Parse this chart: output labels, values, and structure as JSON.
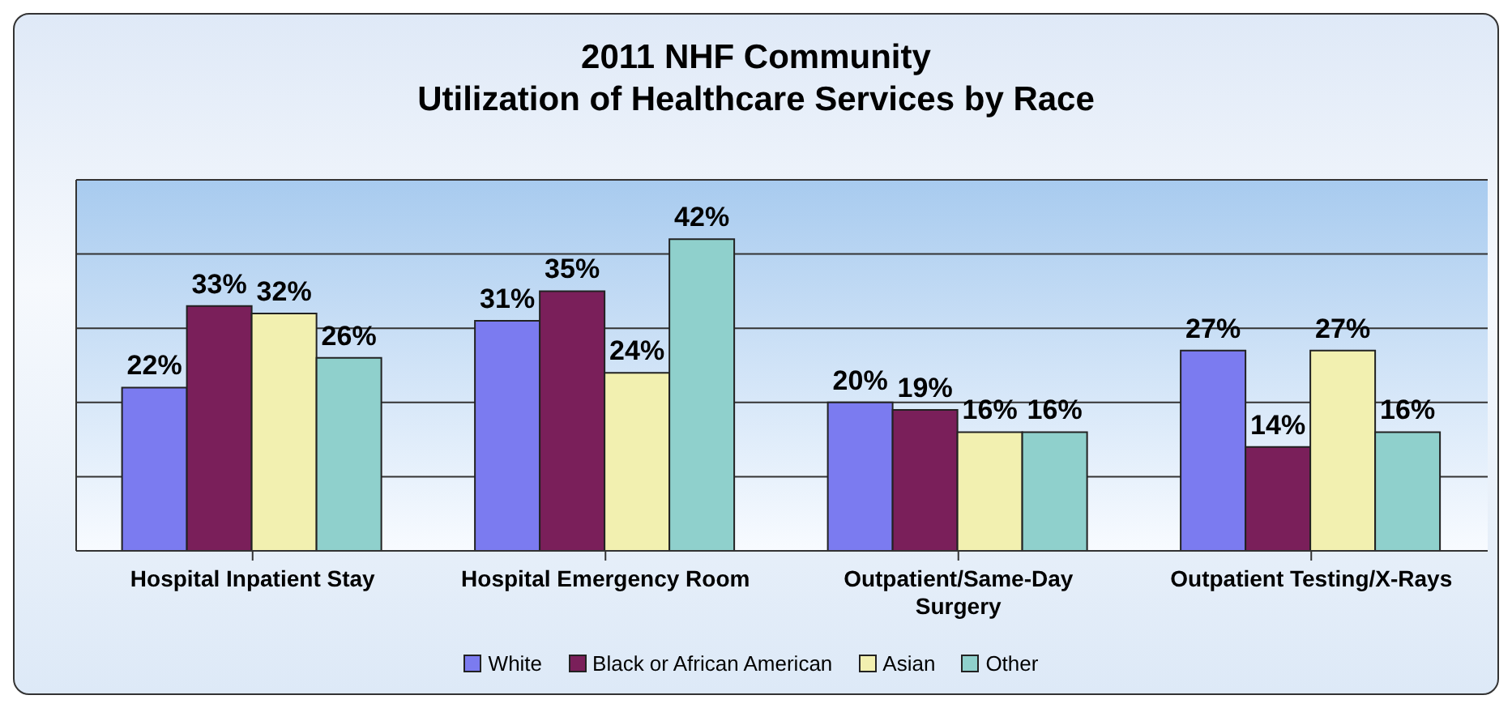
{
  "chart_data": {
    "type": "bar",
    "title": "2011 NHF Community\nUtilization of Healthcare Services by Race",
    "categories": [
      "Hospital Inpatient Stay",
      "Hospital Emergency Room",
      "Outpatient/Same-Day Surgery",
      "Outpatient Testing/X-Rays"
    ],
    "series": [
      {
        "name": "White",
        "color": "#7b7bf0",
        "values": [
          22,
          31,
          20,
          27
        ],
        "value_labels": [
          "22%",
          "31%",
          "20%",
          "27%"
        ]
      },
      {
        "name": "Black or African American",
        "color": "#7a1f5a",
        "values": [
          33,
          35,
          19,
          14
        ],
        "value_labels": [
          "33%",
          "35%",
          "19%",
          "14%"
        ]
      },
      {
        "name": "Asian",
        "color": "#f2f0b0",
        "values": [
          32,
          24,
          16,
          27
        ],
        "value_labels": [
          "32%",
          "24%",
          "16%",
          "27%"
        ]
      },
      {
        "name": "Other",
        "color": "#8fd0cc",
        "values": [
          26,
          42,
          16,
          16
        ],
        "value_labels": [
          "26%",
          "42%",
          "16%",
          "16%"
        ]
      }
    ],
    "ylim": [
      0,
      50
    ],
    "yticks": [
      {
        "value": 0,
        "label": null
      },
      {
        "value": 10,
        "label": null
      },
      {
        "value": 20,
        "label": null
      },
      {
        "value": 30,
        "label": null
      },
      {
        "value": 40,
        "label": null
      },
      {
        "value": 50,
        "label": null
      }
    ],
    "tick_labels": "x",
    "grid": "y",
    "legend": "bottom"
  }
}
